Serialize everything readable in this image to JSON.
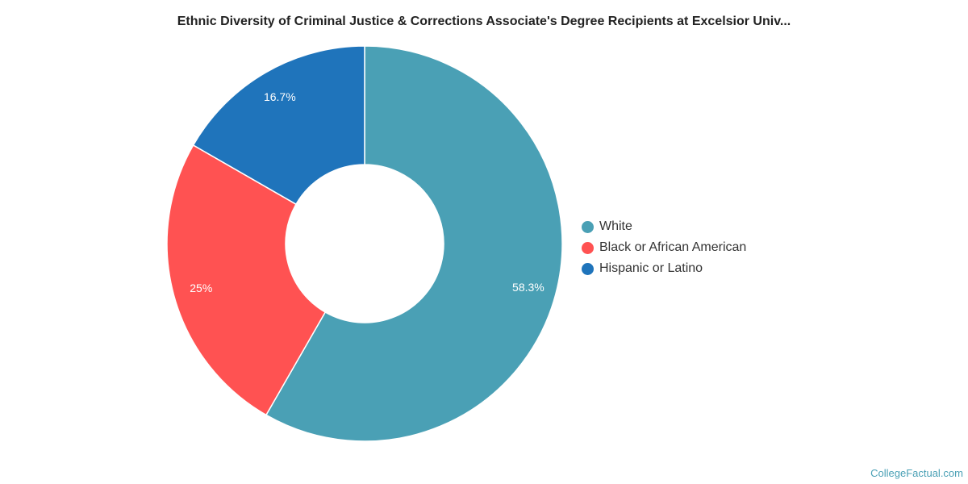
{
  "chart_data": {
    "type": "pie",
    "subtype": "donut",
    "title": "Ethnic Diversity of Criminal Justice & Corrections Associate's Degree Recipients at Excelsior Univ...",
    "categories": [
      "White",
      "Black or African American",
      "Hispanic or Latino"
    ],
    "values": [
      58.3,
      25,
      16.7
    ],
    "labels": [
      "58.3%",
      "25%",
      "16.7%"
    ],
    "colors": [
      "#4aa0b5",
      "#ff5252",
      "#1f74bb"
    ],
    "legend_position": "right"
  },
  "credit": "CollegeFactual.com"
}
